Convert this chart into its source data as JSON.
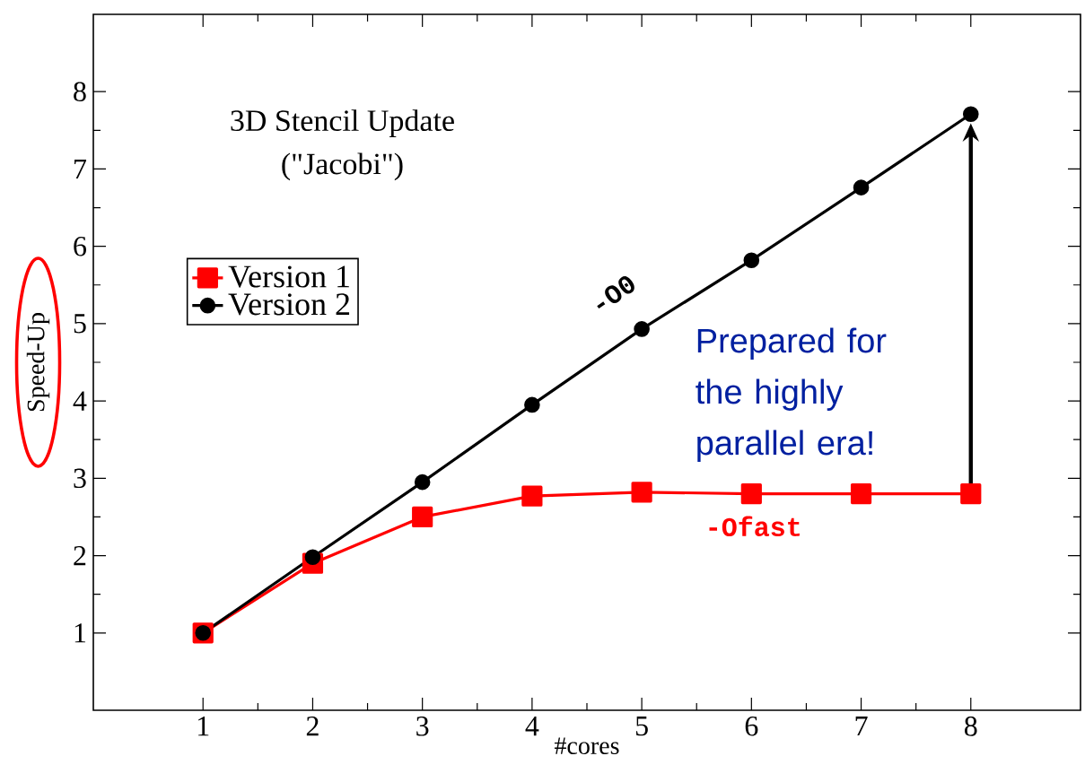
{
  "chart_data": {
    "type": "line",
    "title": "3D Stencil Update",
    "subtitle": "(\"Jacobi\")",
    "xlabel": "#cores",
    "ylabel": "Speed-Up",
    "x": [
      1,
      2,
      3,
      4,
      5,
      6,
      7,
      8
    ],
    "series": [
      {
        "name": "Version 1",
        "color": "#ff0000",
        "marker": "square",
        "values": [
          1.0,
          1.9,
          2.5,
          2.77,
          2.82,
          2.8,
          2.8,
          2.8
        ]
      },
      {
        "name": "Version 2",
        "color": "#000000",
        "marker": "circle",
        "values": [
          1.0,
          1.98,
          2.95,
          3.95,
          4.93,
          5.82,
          6.76,
          7.71
        ]
      }
    ],
    "xlim": [
      0,
      9
    ],
    "ylim": [
      0,
      9
    ],
    "xticks": [
      1,
      2,
      3,
      4,
      5,
      6,
      7,
      8
    ],
    "yticks": [
      1,
      2,
      3,
      4,
      5,
      6,
      7,
      8
    ],
    "grid": false,
    "legend": "top left",
    "line_style": "solid",
    "annotations": [
      "-O0",
      "-Ofast",
      "Prepared for the highly parallel era!"
    ]
  }
}
